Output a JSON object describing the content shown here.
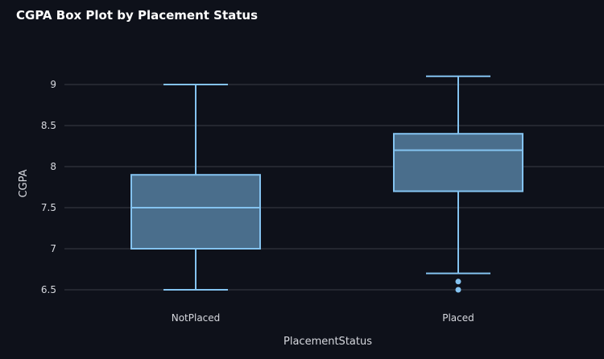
{
  "chart_data": {
    "type": "box",
    "title": "CGPA Box Plot by Placement Status",
    "xlabel": "PlacementStatus",
    "ylabel": "CGPA",
    "ylim": [
      6.4,
      9.3
    ],
    "yticks": [
      "6.5",
      "7",
      "7.5",
      "8",
      "8.5",
      "9"
    ],
    "grid": true,
    "categories": [
      "NotPlaced",
      "Placed"
    ],
    "boxes": [
      {
        "category": "NotPlaced",
        "min": 6.5,
        "q1": 7.0,
        "median": 7.5,
        "q3": 7.9,
        "max": 9.0,
        "outliers": []
      },
      {
        "category": "Placed",
        "min": 6.7,
        "q1": 7.7,
        "median": 8.2,
        "q3": 8.4,
        "max": 9.1,
        "outliers": [
          6.6,
          6.5
        ]
      }
    ],
    "colors": {
      "background": "#0e111a",
      "grid": "#3a3d46",
      "box_fill": "#4a6e8c",
      "box_stroke": "#84c3f0",
      "text": "#d6d8de"
    }
  }
}
